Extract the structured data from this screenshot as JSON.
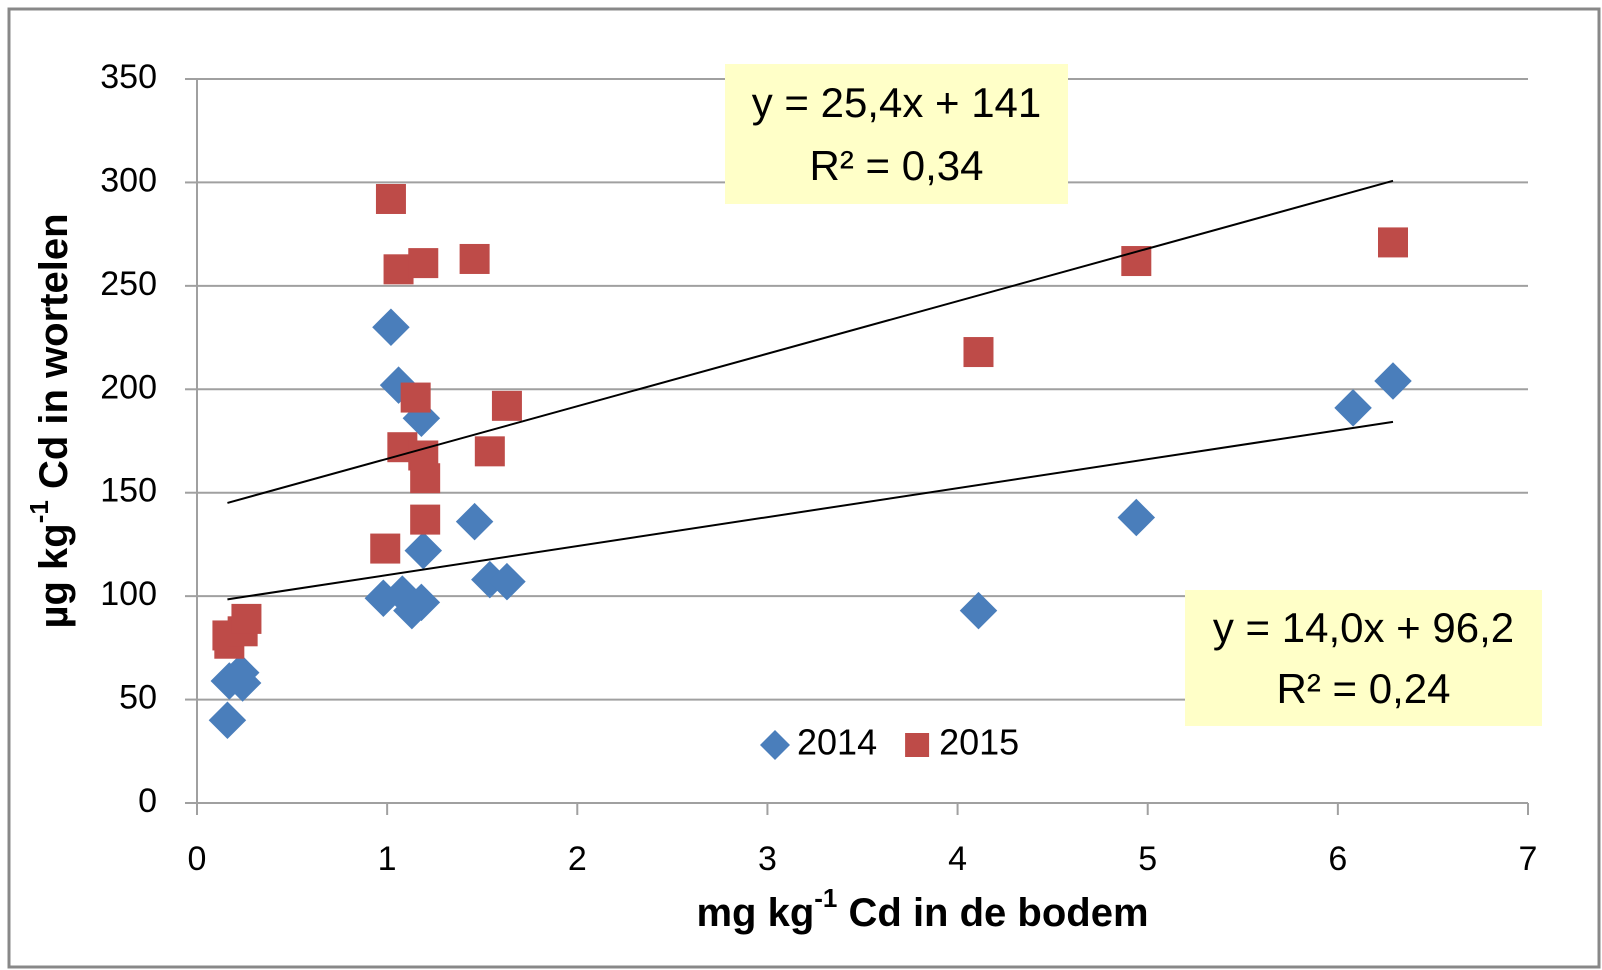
{
  "chart_data": {
    "type": "scatter",
    "x_label": [
      "mg kg",
      "-1",
      " Cd in de bodem"
    ],
    "y_label": [
      "µg kg",
      "-1",
      " Cd in wortelen"
    ],
    "xlim": [
      0,
      7
    ],
    "xticks": [
      0,
      1,
      2,
      3,
      4,
      5,
      6,
      7
    ],
    "ylim": [
      0,
      350
    ],
    "yticks": [
      0,
      50,
      100,
      150,
      200,
      250,
      300,
      350
    ],
    "grid": true,
    "legend": "lower center",
    "series": [
      {
        "name": "2014",
        "color": "#4a7ebb",
        "marker": "diamond",
        "x": [
          0.16,
          0.17,
          0.23,
          0.24,
          0.98,
          1.02,
          1.06,
          1.08,
          1.13,
          1.18,
          1.18,
          1.19,
          1.46,
          1.54,
          1.63,
          4.11,
          4.94,
          6.08,
          6.29
        ],
        "values": [
          40,
          59,
          63,
          58,
          99,
          230,
          202,
          101,
          93,
          97,
          186,
          122,
          136,
          108,
          107,
          93,
          138,
          191,
          204
        ],
        "trendline": {
          "equation": "y = 14,0x + 96,2",
          "r2": "R² = 0,24",
          "slope": 14.0,
          "intercept": 96.2
        }
      },
      {
        "name": "2015",
        "color": "#be4b48",
        "marker": "square",
        "x": [
          0.16,
          0.17,
          0.24,
          0.26,
          0.99,
          1.02,
          1.06,
          1.08,
          1.15,
          1.19,
          1.19,
          1.2,
          1.2,
          1.46,
          1.54,
          1.63,
          4.11,
          4.94,
          6.29
        ],
        "values": [
          81,
          77,
          83,
          89,
          123,
          292,
          258,
          172,
          196,
          261,
          168,
          157,
          137,
          263,
          170,
          192,
          218,
          262,
          271
        ],
        "trendline": {
          "equation": "y = 25,4x + 141",
          "r2": "R² = 0,34",
          "slope": 25.4,
          "intercept": 141
        }
      }
    ]
  }
}
